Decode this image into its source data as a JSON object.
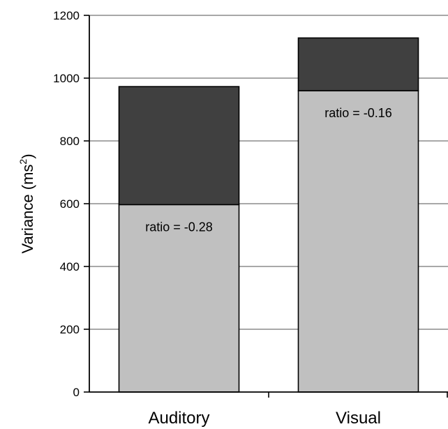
{
  "chart_data": {
    "type": "bar",
    "stacked": true,
    "categories": [
      "Auditory",
      "Visual"
    ],
    "series": [
      {
        "values": [
          597,
          960
        ],
        "color": "#c0c0c0"
      },
      {
        "values": [
          376,
          168
        ],
        "color": "#404040"
      }
    ],
    "totals": [
      973,
      1128
    ],
    "annotations": [
      "ratio = -0.28",
      "ratio = -0.16"
    ],
    "ylabel_main": "Variance (ms",
    "ylabel_sup": "2",
    "ylabel_end": ")",
    "ylim": [
      0,
      1200
    ],
    "yticks": [
      0,
      200,
      400,
      600,
      800,
      1000,
      1200
    ],
    "ytick_labels": [
      "0",
      "200",
      "400",
      "600",
      "800",
      "1000",
      "1200"
    ],
    "grid": true
  }
}
